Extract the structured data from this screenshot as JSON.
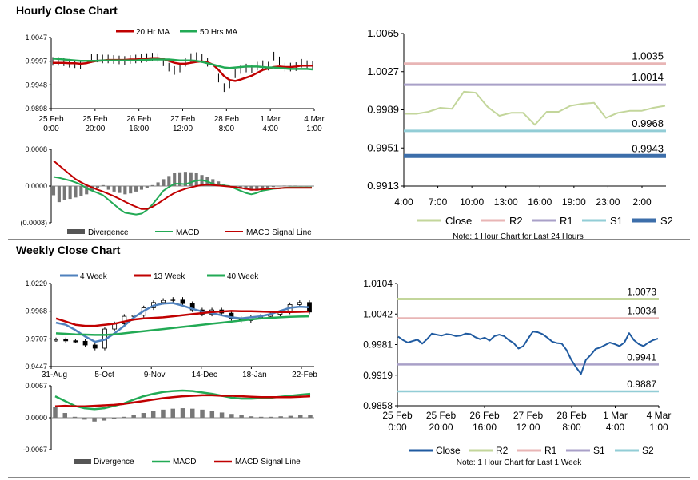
{
  "hourly_title": "Hourly Close Chart",
  "weekly_title": "Weekly Close Chart",
  "chart_data": [
    {
      "id": "hourly_price",
      "type": "line",
      "subtype": "ohlc_with_moving_averages",
      "ylim": [
        0.9898,
        1.0047
      ],
      "y_ticks": [
        "1.0047",
        "0.9997",
        "0.9948",
        "0.9898"
      ],
      "x_ticks": [
        [
          "25 Feb",
          "0:00"
        ],
        [
          "25 Feb",
          "20:00"
        ],
        [
          "26 Feb",
          "16:00"
        ],
        [
          "27 Feb",
          "12:00"
        ],
        [
          "28 Feb",
          "8:00"
        ],
        [
          "1 Mar",
          "4:00"
        ],
        [
          "4 Mar",
          "1:00"
        ]
      ],
      "legend": [
        {
          "name": "20 Hr MA",
          "color": "#c00000"
        },
        {
          "name": "50 Hrs MA",
          "color": "#22aa55"
        }
      ],
      "close": [
        0.9997,
        0.9997,
        0.9996,
        0.9993,
        0.9992,
        0.999,
        0.9997,
        1.0003,
        1.0004,
        1.0002,
        1.0002,
        1.0001,
        1.0,
        0.9999,
        1.0001,
        1.0002,
        1.0003,
        1.0005,
        1.0006,
        1.0005,
        0.9996,
        0.9985,
        0.9978,
        0.9983,
        0.9995,
        1.0005,
        1.0007,
        1.0003,
        0.9995,
        0.9986,
        0.9962,
        0.9942,
        0.995,
        0.9971,
        0.998,
        0.9983,
        0.9981,
        0.9987,
        0.999,
        0.9987,
        1.0008,
        0.9998,
        0.9985,
        0.9985,
        0.9986,
        0.9993,
        0.999,
        0.9989
      ],
      "series": [
        {
          "name": "20 Hr MA",
          "color": "#c00000",
          "values": [
            0.9994,
            0.9994,
            0.9994,
            0.9993,
            0.9993,
            0.9992,
            0.9993,
            0.9996,
            0.9998,
            0.9999,
            1.0,
            1.0,
            1.0,
            1.0,
            1.0001,
            1.0001,
            1.0002,
            1.0003,
            1.0004,
            1.0004,
            1.0002,
            0.9998,
            0.9994,
            0.9992,
            0.9992,
            0.9994,
            0.9996,
            0.9997,
            0.9995,
            0.999,
            0.9979,
            0.9966,
            0.9958,
            0.9956,
            0.9959,
            0.9963,
            0.9967,
            0.9973,
            0.9979,
            0.9982,
            0.9985,
            0.9986,
            0.9985,
            0.9985,
            0.9986,
            0.9988,
            0.9988,
            0.9988
          ]
        },
        {
          "name": "50 Hrs MA",
          "color": "#22aa55",
          "values": [
            1.0003,
            1.0002,
            1.0001,
            1.0,
            0.9999,
            0.9998,
            0.9998,
            0.9998,
            0.9998,
            0.9999,
            0.9999,
            0.9999,
            0.9999,
            0.9999,
            0.9999,
            0.9999,
            1.0,
            1.0,
            1.0001,
            1.0001,
            1.0001,
            1.0001,
            1.0,
            0.9999,
            0.9999,
            0.9999,
            0.9998,
            0.9996,
            0.9993,
            0.999,
            0.9987,
            0.9984,
            0.9983,
            0.9984,
            0.9985,
            0.9986,
            0.9986,
            0.9986,
            0.9985,
            0.9984,
            0.9984,
            0.9983,
            0.9982,
            0.9981,
            0.9981,
            0.9981,
            0.9981,
            0.998
          ]
        }
      ]
    },
    {
      "id": "hourly_macd",
      "type": "bar",
      "ylim": [
        -0.0008,
        0.0008
      ],
      "y_ticks": [
        "0.0008",
        "0.0000",
        "(0.0008)"
      ],
      "legend": [
        {
          "name": "Divergence",
          "color": "#555555"
        },
        {
          "name": "MACD",
          "color": "#22aa55"
        },
        {
          "name": "MACD Signal Line",
          "color": "#c00000"
        }
      ],
      "divergence": [
        -0.0002,
        -0.00035,
        -0.0003,
        -0.00028,
        -0.00025,
        -0.00022,
        -0.00018,
        -0.0001,
        -5e-05,
        2e-05,
        -8e-05,
        -0.00012,
        -0.00015,
        -0.00018,
        -0.00016,
        -0.00012,
        -8e-05,
        -4e-05,
        2e-05,
        8e-05,
        0.00015,
        0.00022,
        0.00028,
        0.0003,
        0.00031,
        0.0003,
        0.00028,
        0.00024,
        0.0002,
        0.00015,
        0.0001,
        5e-05,
        0.0,
        -3e-05,
        -6e-05,
        -8e-05,
        -0.0001,
        -0.0001,
        -8e-05,
        -5e-05,
        -2e-05,
        0.0,
        1e-05,
        1e-05,
        1e-05,
        0.0,
        0.0,
        0.0
      ],
      "series": [
        {
          "name": "MACD",
          "color": "#22aa55",
          "values": [
            0.0002,
            0.00018,
            0.00015,
            0.00012,
            8e-05,
            3e-05,
            -5e-05,
            -0.0001,
            -0.00015,
            -0.0002,
            -0.0003,
            -0.0004,
            -0.0005,
            -0.00058,
            -0.0006,
            -0.00062,
            -0.0006,
            -0.00052,
            -0.0004,
            -0.00025,
            -0.0001,
            -2e-05,
            5e-05,
            5e-05,
            4e-05,
            8e-05,
            0.00012,
            0.00013,
            0.0001,
            5e-05,
            2e-05,
            1e-05,
            0.0,
            -5e-05,
            -0.0001,
            -0.00015,
            -0.00018,
            -0.00015,
            -0.0001,
            -8e-05,
            -6e-05,
            -5e-05,
            -4e-05,
            -3e-05,
            -3e-05,
            -3e-05,
            -3e-05,
            -3e-05
          ]
        },
        {
          "name": "MACD Signal Line",
          "color": "#c00000",
          "values": [
            0.00055,
            0.00045,
            0.00035,
            0.00025,
            0.00015,
            8e-05,
            2e-05,
            -3e-05,
            -8e-05,
            -0.00012,
            -0.00017,
            -0.00022,
            -0.00028,
            -0.00034,
            -0.0004,
            -0.00045,
            -0.0005,
            -0.0005,
            -0.00045,
            -0.00038,
            -0.0003,
            -0.00022,
            -0.00015,
            -0.0001,
            -6e-05,
            -3e-05,
            0.0,
            2e-05,
            3e-05,
            2e-05,
            1e-05,
            0.0,
            -1e-05,
            -2e-05,
            -4e-05,
            -6e-05,
            -8e-05,
            -8e-05,
            -7e-05,
            -6e-05,
            -5e-05,
            -5e-05,
            -4e-05,
            -4e-05,
            -4e-05,
            -4e-05,
            -4e-05,
            -4e-05
          ]
        }
      ]
    },
    {
      "id": "hourly_24h",
      "type": "line",
      "ylim": [
        0.9913,
        1.0065
      ],
      "y_ticks": [
        "1.0065",
        "1.0027",
        "0.9989",
        "0.9951",
        "0.9913"
      ],
      "x_ticks": [
        "4:00",
        "7:00",
        "10:00",
        "13:00",
        "16:00",
        "19:00",
        "23:00",
        "2:00"
      ],
      "note": "Note: 1 Hour Chart for Last 24 Hours",
      "close": [
        0.9985,
        0.9985,
        0.9987,
        0.9991,
        0.999,
        1.0007,
        1.0006,
        0.9992,
        0.9983,
        0.9986,
        0.9986,
        0.9974,
        0.9987,
        0.9987,
        0.9993,
        0.9995,
        0.9996,
        0.9981,
        0.9986,
        0.9988,
        0.9988,
        0.9991,
        0.9993
      ],
      "levels": [
        {
          "name": "R2",
          "value": 1.0035,
          "label": "1.0035",
          "color": "#e8b5b5"
        },
        {
          "name": "R1",
          "value": 1.0014,
          "label": "1.0014",
          "color": "#a9a0c8"
        },
        {
          "name": "S1",
          "value": 0.9968,
          "label": "0.9968",
          "color": "#92cdd6"
        },
        {
          "name": "S2",
          "value": 0.9943,
          "label": "0.9943",
          "color": "#3c6eaa"
        }
      ],
      "legend": [
        {
          "name": "Close",
          "color": "#c3d69b"
        },
        {
          "name": "R2",
          "color": "#e8b5b5"
        },
        {
          "name": "R1",
          "color": "#a9a0c8"
        },
        {
          "name": "S1",
          "color": "#92cdd6"
        },
        {
          "name": "S2",
          "color": "#3c6eaa"
        }
      ]
    },
    {
      "id": "weekly_price",
      "type": "line",
      "subtype": "ohlc_with_moving_averages",
      "ylim": [
        0.9447,
        1.0229
      ],
      "y_ticks": [
        "1.0229",
        "0.9968",
        "0.9707",
        "0.9447"
      ],
      "x_ticks": [
        "31-Aug",
        "5-Oct",
        "9-Nov",
        "14-Dec",
        "18-Jan",
        "22-Feb"
      ],
      "legend": [
        {
          "name": "4 Week",
          "color": "#4f81bd"
        },
        {
          "name": "13 Week",
          "color": "#c00000"
        },
        {
          "name": "40 Week",
          "color": "#22aa55"
        }
      ],
      "close": [
        0.97,
        0.969,
        0.9685,
        0.965,
        0.962,
        0.98,
        0.985,
        0.992,
        0.993,
        1.0,
        1.005,
        1.007,
        1.008,
        1.004,
        0.998,
        0.994,
        0.998,
        0.995,
        0.99,
        0.988,
        0.991,
        0.992,
        0.994,
        0.996,
        1.003,
        1.005,
        0.996
      ],
      "series": [
        {
          "name": "4 Week",
          "color": "#4f81bd",
          "values": [
            0.986,
            0.984,
            0.979,
            0.973,
            0.968,
            0.97,
            0.976,
            0.983,
            0.991,
            0.997,
            1.002,
            1.004,
            1.0045,
            1.002,
            0.999,
            0.9965,
            0.995,
            0.993,
            0.991,
            0.99,
            0.991,
            0.992,
            0.994,
            0.997,
            1.0,
            1.001,
            1.0005
          ]
        },
        {
          "name": "13 Week",
          "color": "#c00000",
          "values": [
            0.99,
            0.987,
            0.984,
            0.983,
            0.983,
            0.984,
            0.985,
            0.987,
            0.989,
            0.99,
            0.9905,
            0.991,
            0.992,
            0.993,
            0.994,
            0.995,
            0.996,
            0.9965,
            0.997,
            0.9968,
            0.9968,
            0.9965,
            0.9962,
            0.996,
            0.996,
            0.9962,
            0.9965
          ]
        },
        {
          "name": "40 Week",
          "color": "#22aa55",
          "values": [
            0.976,
            0.9755,
            0.975,
            0.9748,
            0.9745,
            0.9745,
            0.975,
            0.976,
            0.977,
            0.978,
            0.979,
            0.98,
            0.981,
            0.982,
            0.983,
            0.984,
            0.985,
            0.986,
            0.987,
            0.988,
            0.989,
            0.99,
            0.9905,
            0.991,
            0.9915,
            0.9918,
            0.992
          ]
        }
      ]
    },
    {
      "id": "weekly_macd",
      "type": "bar",
      "ylim": [
        -0.0067,
        0.0067
      ],
      "y_ticks": [
        "0.0067",
        "0.0000",
        "-0.0067"
      ],
      "legend": [
        {
          "name": "Divergence",
          "color": "#555555"
        },
        {
          "name": "MACD",
          "color": "#22aa55"
        },
        {
          "name": "MACD Signal Line",
          "color": "#c00000"
        }
      ],
      "divergence": [
        0.0022,
        0.001,
        0.0002,
        -0.0004,
        -0.0008,
        -0.0006,
        -0.0002,
        0.0002,
        0.0006,
        0.001,
        0.0014,
        0.0017,
        0.0019,
        0.002,
        0.0019,
        0.0017,
        0.0014,
        0.0011,
        0.0008,
        0.0005,
        0.0003,
        0.0002,
        0.0002,
        0.0003,
        0.0004,
        0.0005,
        0.0006
      ],
      "series": [
        {
          "name": "MACD",
          "color": "#22aa55",
          "values": [
            0.0045,
            0.0035,
            0.0025,
            0.002,
            0.0018,
            0.002,
            0.0025,
            0.003,
            0.0038,
            0.0045,
            0.005,
            0.0054,
            0.0056,
            0.0057,
            0.0056,
            0.0053,
            0.005,
            0.0046,
            0.0042,
            0.004,
            0.004,
            0.0041,
            0.0042,
            0.0044,
            0.0046,
            0.0048,
            0.005
          ]
        },
        {
          "name": "MACD Signal Line",
          "color": "#c00000",
          "values": [
            0.0024,
            0.0025,
            0.0024,
            0.0024,
            0.0025,
            0.0026,
            0.0027,
            0.0029,
            0.0032,
            0.0035,
            0.0038,
            0.0041,
            0.0043,
            0.0045,
            0.0046,
            0.0047,
            0.0047,
            0.0046,
            0.0046,
            0.0045,
            0.0044,
            0.0043,
            0.0043,
            0.0043,
            0.0043,
            0.0044,
            0.0045
          ]
        }
      ]
    },
    {
      "id": "weekly_1w",
      "type": "line",
      "ylim": [
        0.9858,
        1.0104
      ],
      "y_ticks": [
        "1.0104",
        "1.0042",
        "0.9981",
        "0.9919",
        "0.9858"
      ],
      "x_ticks": [
        [
          "25 Feb",
          "0:00"
        ],
        [
          "25 Feb",
          "20:00"
        ],
        [
          "26 Feb",
          "16:00"
        ],
        [
          "27 Feb",
          "12:00"
        ],
        [
          "28 Feb",
          "8:00"
        ],
        [
          "1 Mar",
          "4:00"
        ],
        [
          "4 Mar",
          "1:00"
        ]
      ],
      "note": "Note: 1 Hour Chart for Last 1 Week",
      "close": [
        0.9997,
        0.999,
        0.9985,
        0.9988,
        0.9991,
        0.9983,
        0.9992,
        1.0003,
        1.0001,
        0.9999,
        1.0002,
        1.0001,
        0.9998,
        0.9999,
        1.0003,
        1.0002,
        0.9996,
        0.9992,
        0.9995,
        0.9989,
        0.9998,
        1.0001,
        0.9998,
        0.999,
        0.9984,
        0.9973,
        0.9978,
        0.9993,
        1.0007,
        1.0006,
        1.0002,
        0.9995,
        0.9987,
        0.9984,
        0.9983,
        0.997,
        0.995,
        0.9935,
        0.9922,
        0.995,
        0.996,
        0.9972,
        0.9975,
        0.998,
        0.9985,
        0.9982,
        0.9978,
        0.9985,
        1.0004,
        0.999,
        0.9982,
        0.9978,
        0.9985,
        0.999,
        0.9993
      ],
      "levels": [
        {
          "name": "R2",
          "value": 1.0073,
          "label": "1.0073",
          "color": "#c3d69b"
        },
        {
          "name": "R1",
          "value": 1.0034,
          "label": "1.0034",
          "color": "#e8b5b5"
        },
        {
          "name": "S1",
          "value": 0.9941,
          "label": "0.9941",
          "color": "#a9a0c8"
        },
        {
          "name": "S2",
          "value": 0.9887,
          "label": "0.9887",
          "color": "#92cdd6"
        }
      ],
      "legend": [
        {
          "name": "Close",
          "color": "#1f5aa0"
        },
        {
          "name": "R2",
          "color": "#c3d69b"
        },
        {
          "name": "R1",
          "color": "#e8b5b5"
        },
        {
          "name": "S1",
          "color": "#a9a0c8"
        },
        {
          "name": "S2",
          "color": "#92cdd6"
        }
      ]
    }
  ]
}
